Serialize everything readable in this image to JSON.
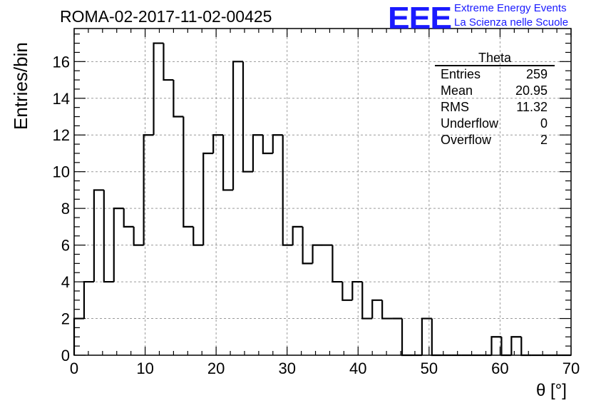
{
  "header": {
    "title": "ROMA-02-2017-11-02-00425",
    "logo_text": "EEE",
    "tagline_1": "Extreme Energy Events",
    "tagline_2": "La Scienza nelle Scuole",
    "brand_color": "#1a1aff"
  },
  "stats_box": {
    "title": "Theta",
    "rows": [
      {
        "label": "Entries",
        "value": "259"
      },
      {
        "label": "Mean",
        "value": "20.95"
      },
      {
        "label": "RMS",
        "value": "11.32"
      },
      {
        "label": "Underflow",
        "value": "0"
      },
      {
        "label": "Overflow",
        "value": "2"
      }
    ]
  },
  "chart_data": {
    "type": "bar",
    "histogram": true,
    "title": "ROMA-02-2017-11-02-00425",
    "xlabel": "θ [°]",
    "ylabel": "Entries/bin",
    "xlim": [
      0,
      70
    ],
    "ylim": [
      0,
      17.8
    ],
    "bin_edges": [
      0,
      1.4,
      2.8,
      4.2,
      5.6,
      7,
      8.4,
      9.8,
      11.2,
      12.6,
      14,
      15.4,
      16.8,
      18.2,
      19.6,
      21,
      22.4,
      23.8,
      25.2,
      26.6,
      28,
      29.4,
      30.8,
      32.2,
      33.6,
      35,
      36.4,
      37.8,
      39.2,
      40.6,
      42,
      43.4,
      44.8,
      46.2,
      47.6,
      49,
      50.4,
      51.8,
      53.2,
      54.6,
      56,
      57.4,
      58.8,
      60.2,
      61.6,
      63,
      64.4,
      65.8,
      67.2,
      68.6,
      70
    ],
    "values": [
      2,
      4,
      9,
      4,
      8,
      7,
      6,
      12,
      17,
      15,
      13,
      7,
      6,
      11,
      12,
      9,
      16,
      10,
      12,
      11,
      12,
      6,
      7,
      5,
      6,
      6,
      4,
      3,
      4,
      2,
      3,
      2,
      2,
      0,
      0,
      2,
      0,
      0,
      0,
      0,
      0,
      0,
      1,
      0,
      1,
      0,
      0,
      0,
      0,
      0
    ],
    "x_ticks": [
      0,
      10,
      20,
      30,
      40,
      50,
      60,
      70
    ],
    "y_ticks": [
      0,
      2,
      4,
      6,
      8,
      10,
      12,
      14,
      16
    ],
    "grid": true,
    "line_color": "#000000",
    "grid_color": "#9a9a9a"
  }
}
